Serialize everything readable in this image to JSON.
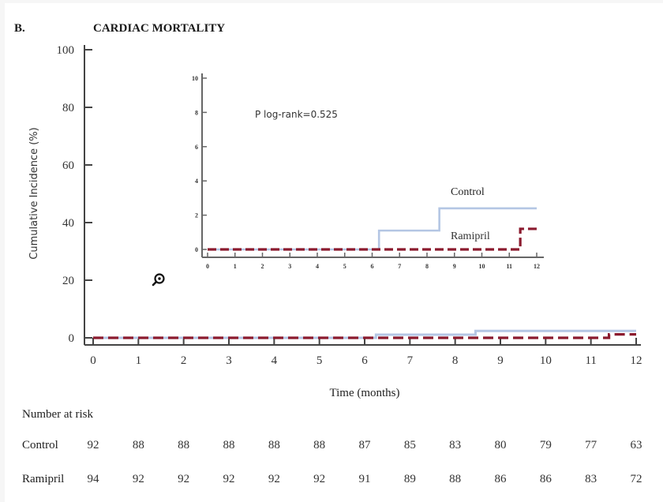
{
  "figure": {
    "panel_label": "B.",
    "title": "CARDIAC MORTALITY"
  },
  "chart_data": [
    {
      "id": "main",
      "type": "line",
      "subtype": "step",
      "title": "CARDIAC MORTALITY",
      "xlabel": "Time (months)",
      "ylabel": "Cumulative Incidence (%)",
      "xlim": [
        0,
        12
      ],
      "ylim": [
        0,
        100
      ],
      "xticks": [
        "0",
        "1",
        "2",
        "3",
        "4",
        "5",
        "6",
        "7",
        "8",
        "9",
        "10",
        "11",
        "12"
      ],
      "yticks": [
        "0",
        "20",
        "40",
        "60",
        "80",
        "100"
      ],
      "grid": false,
      "series": [
        {
          "name": "Control",
          "color": "#b4c6e4",
          "style": "solid",
          "x": [
            0,
            6.25,
            6.25,
            8.45,
            8.45,
            12
          ],
          "y": [
            0,
            0,
            1.1,
            1.1,
            2.4,
            2.4
          ]
        },
        {
          "name": "Ramipril",
          "color": "#8b1a2e",
          "style": "dashed",
          "x": [
            0,
            11.4,
            11.4,
            12
          ],
          "y": [
            0,
            0,
            1.2,
            1.2
          ]
        }
      ]
    },
    {
      "id": "inset",
      "type": "line",
      "subtype": "step",
      "xlim": [
        0,
        12
      ],
      "ylim": [
        0,
        10
      ],
      "xticks": [
        "0",
        "1",
        "2",
        "3",
        "4",
        "5",
        "6",
        "7",
        "8",
        "9",
        "10",
        "11",
        "12"
      ],
      "yticks": [
        "0",
        "2",
        "4",
        "6",
        "8",
        "10"
      ],
      "annotation": "P log-rank=0.525",
      "legend": [
        "Control",
        "Ramipril"
      ],
      "legend_placement": "right, next to curves",
      "series": [
        {
          "name": "Control",
          "color": "#b4c6e4",
          "style": "solid",
          "x": [
            0,
            6.25,
            6.25,
            8.45,
            8.45,
            12
          ],
          "y": [
            0,
            0,
            1.1,
            1.1,
            2.4,
            2.4
          ]
        },
        {
          "name": "Ramipril",
          "color": "#8b1a2e",
          "style": "dashed",
          "x": [
            0,
            11.4,
            11.4,
            12
          ],
          "y": [
            0,
            0,
            1.2,
            1.2
          ]
        }
      ]
    }
  ],
  "risk_table": {
    "title": "Number at risk",
    "rows": [
      {
        "label": "Control",
        "values": [
          "92",
          "88",
          "88",
          "88",
          "88",
          "88",
          "87",
          "85",
          "83",
          "80",
          "79",
          "77",
          "63"
        ]
      },
      {
        "label": "Ramipril",
        "values": [
          "94",
          "92",
          "92",
          "92",
          "92",
          "92",
          "91",
          "89",
          "88",
          "86",
          "86",
          "83",
          "72"
        ]
      }
    ]
  },
  "icons": {
    "zoom": "zoom-in-magnifier-icon"
  }
}
